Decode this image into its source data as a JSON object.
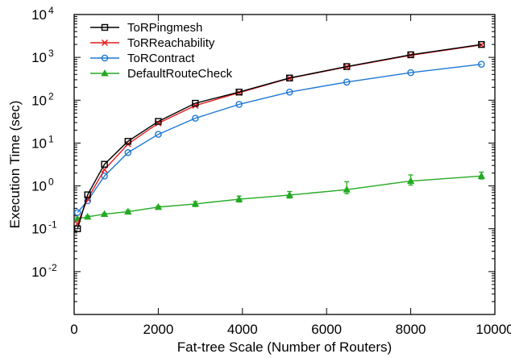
{
  "chart_data": {
    "type": "line",
    "title": "",
    "xlabel": "Fat-tree Scale (Number of Routers)",
    "ylabel": "Execution Time (sec)",
    "xlim": [
      0,
      10000
    ],
    "ylim_log10": [
      -3,
      4
    ],
    "y_scale": "log",
    "x_ticks": [
      0,
      2000,
      4000,
      6000,
      8000,
      10000
    ],
    "x_tick_labels": [
      "0",
      "2000",
      "4000",
      "6000",
      "8000",
      "10000"
    ],
    "y_tick_labels": [
      {
        "base": "10",
        "exp": "-2",
        "value": 0.01
      },
      {
        "base": "10",
        "exp": "-1",
        "value": 0.1
      },
      {
        "base": "10",
        "exp": "0",
        "value": 1
      },
      {
        "base": "10",
        "exp": "1",
        "value": 10
      },
      {
        "base": "10",
        "exp": "2",
        "value": 100
      },
      {
        "base": "10",
        "exp": "3",
        "value": 1000
      },
      {
        "base": "10",
        "exp": "4",
        "value": 10000
      }
    ],
    "grid": false,
    "legend_position": "top-left",
    "series": [
      {
        "name": "ToRPingmesh",
        "color": "#000000",
        "marker": "square",
        "x": [
          80,
          320,
          720,
          1280,
          2000,
          2880,
          3920,
          5120,
          6480,
          8000,
          9680
        ],
        "y": [
          0.1,
          0.62,
          3.2,
          11,
          32,
          85,
          155,
          330,
          610,
          1150,
          2000
        ]
      },
      {
        "name": "ToRReachability",
        "color": "#e41a1c",
        "marker": "x",
        "x": [
          80,
          320,
          720,
          1280,
          2000,
          2880,
          3920,
          5120,
          6480,
          8000,
          9680
        ],
        "y": [
          0.13,
          0.5,
          2.4,
          9.5,
          29,
          75,
          150,
          325,
          600,
          1120,
          1950
        ]
      },
      {
        "name": "ToRContract",
        "color": "#1f78d4",
        "marker": "circle",
        "x": [
          80,
          320,
          720,
          1280,
          2000,
          2880,
          3920,
          5120,
          6480,
          8000,
          9680
        ],
        "y": [
          0.24,
          0.45,
          1.7,
          6,
          16,
          38,
          80,
          155,
          265,
          440,
          690
        ]
      },
      {
        "name": "DefaultRouteCheck",
        "color": "#22aa22",
        "marker": "triangle",
        "x": [
          80,
          320,
          720,
          1280,
          2000,
          2880,
          3920,
          5120,
          6480,
          8000,
          9680
        ],
        "y": [
          0.17,
          0.19,
          0.22,
          0.25,
          0.32,
          0.38,
          0.49,
          0.61,
          0.82,
          1.3,
          1.7
        ],
        "err_low": [
          0.16,
          0.18,
          0.21,
          0.24,
          0.3,
          0.33,
          0.42,
          0.52,
          0.66,
          1.05,
          1.45
        ],
        "err_high": [
          0.18,
          0.2,
          0.23,
          0.27,
          0.34,
          0.43,
          0.58,
          0.74,
          1.25,
          1.8,
          2.1
        ]
      }
    ]
  }
}
